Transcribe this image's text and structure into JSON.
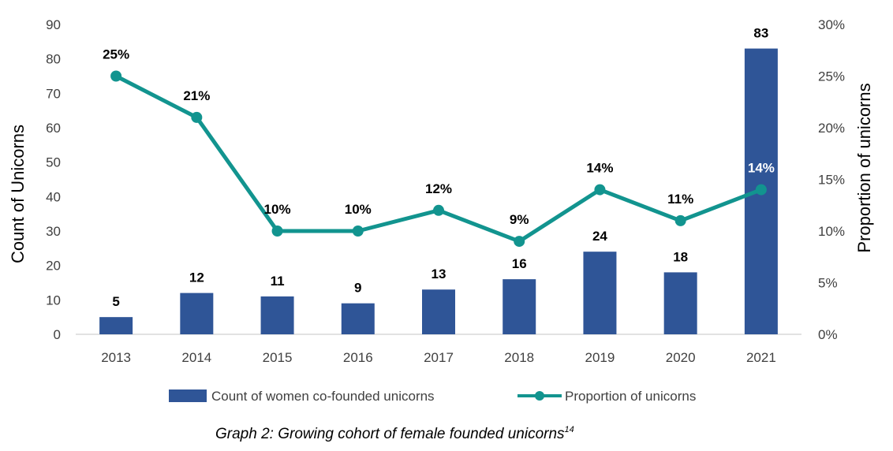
{
  "chart_data": {
    "type": "bar",
    "categories": [
      "2013",
      "2014",
      "2015",
      "2016",
      "2017",
      "2018",
      "2019",
      "2020",
      "2021"
    ],
    "series": [
      {
        "name": "Count of women co-founded unicorns",
        "type": "bar",
        "axis": "left",
        "color": "#2F5597",
        "values": [
          5,
          12,
          11,
          9,
          13,
          16,
          24,
          18,
          83
        ],
        "labels": [
          "5",
          "12",
          "11",
          "9",
          "13",
          "16",
          "24",
          "18",
          "83"
        ]
      },
      {
        "name": "Proportion of unicorns",
        "type": "line",
        "axis": "right",
        "color": "#12948F",
        "values": [
          25,
          21,
          10,
          10,
          12,
          9,
          14,
          11,
          14
        ],
        "labels": [
          "25%",
          "21%",
          "10%",
          "10%",
          "12%",
          "9%",
          "14%",
          "11%",
          "14%"
        ]
      }
    ],
    "ylabel": "Count of Unicorns",
    "ylim": [
      0,
      90
    ],
    "yticks": [
      "0",
      "10",
      "20",
      "30",
      "40",
      "50",
      "60",
      "70",
      "80",
      "90"
    ],
    "y2label": "Proportion of unicorns",
    "y2lim": [
      0,
      30
    ],
    "y2ticks": [
      "0%",
      "5%",
      "10%",
      "15%",
      "20%",
      "25%",
      "30%"
    ],
    "grid": false,
    "legend_position": "bottom"
  },
  "caption": {
    "text": "Graph 2: Growing cohort of female founded unicorns",
    "footnote": "14"
  }
}
